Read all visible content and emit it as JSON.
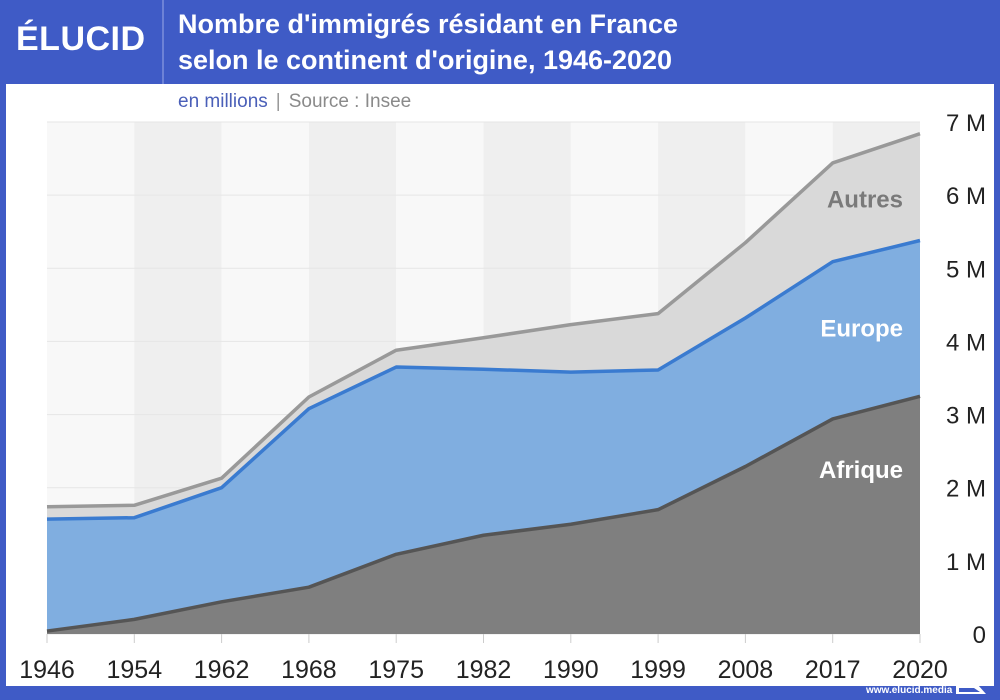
{
  "brand": {
    "logo": "ÉLUCID",
    "url": "www.elucid.media"
  },
  "header": {
    "title_line1": "Nombre d'immigrés résidant en France",
    "title_line2": "selon le continent d'origine, 1946-2020"
  },
  "subtitle": {
    "unit": "en millions",
    "separator": "|",
    "source": "Source : Insee"
  },
  "colors": {
    "brand_blue": "#3f5bc6",
    "afrique_fill": "#7f7f7f",
    "afrique_line": "#555555",
    "europe_fill": "#80aee0",
    "europe_line": "#3a7bd0",
    "autres_fill": "#d9d9d9",
    "autres_line": "#999999"
  },
  "chart_data": {
    "type": "area",
    "stacked": true,
    "title": "Nombre d'immigrés résidant en France selon le continent d'origine, 1946-2020",
    "subtitle": "en millions | Source : Insee",
    "categories": [
      "1946",
      "1954",
      "1962",
      "1968",
      "1975",
      "1982",
      "1990",
      "1999",
      "2008",
      "2017",
      "2020"
    ],
    "series": [
      {
        "name": "Afrique",
        "values": [
          0.04,
          0.2,
          0.44,
          0.64,
          1.09,
          1.35,
          1.5,
          1.7,
          2.29,
          2.94,
          3.25
        ]
      },
      {
        "name": "Europe",
        "values": [
          1.53,
          1.39,
          1.56,
          2.44,
          2.56,
          2.27,
          2.08,
          1.91,
          2.03,
          2.15,
          2.13
        ]
      },
      {
        "name": "Autres",
        "values": [
          0.17,
          0.17,
          0.13,
          0.16,
          0.23,
          0.43,
          0.65,
          0.77,
          1.03,
          1.35,
          1.46
        ]
      }
    ],
    "ylim": [
      0,
      7
    ],
    "yticks": [
      0,
      1,
      2,
      3,
      4,
      5,
      6,
      7
    ],
    "ytick_labels": [
      "0",
      "1 M",
      "2 M",
      "3 M",
      "4 M",
      "5 M",
      "6 M",
      "7 M"
    ],
    "y_axis_side": "right",
    "grid": true,
    "legend": "inline labels"
  }
}
